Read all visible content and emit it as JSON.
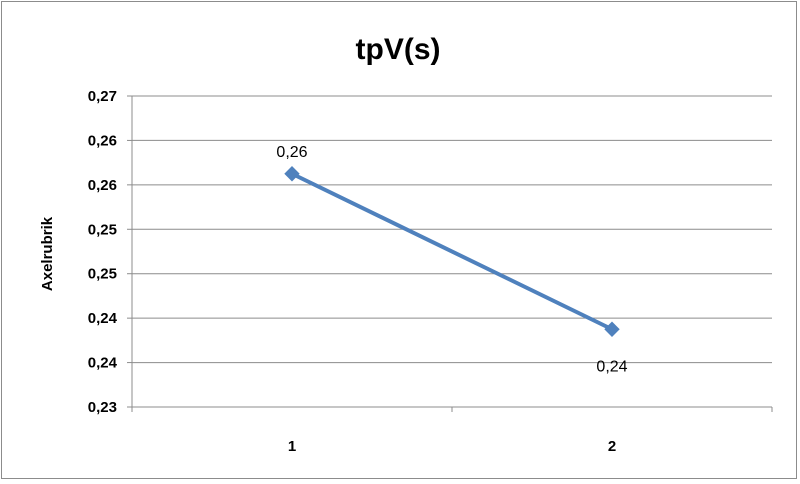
{
  "chart_data": {
    "type": "line",
    "title": "tpV(s)",
    "xlabel": "",
    "ylabel": "Axelrubrik",
    "categories": [
      "1",
      "2"
    ],
    "series": [
      {
        "values": [
          0.26,
          0.24
        ],
        "data_labels": [
          "0,26",
          "0,24"
        ]
      }
    ],
    "ylim": [
      0.23,
      0.27
    ],
    "y_ticks": [
      "0,23",
      "0,24",
      "0,24",
      "0,25",
      "0,25",
      "0,26",
      "0,26",
      "0,27"
    ],
    "grid": true,
    "legend": "none",
    "colors": {
      "series": "#4f81bd",
      "grid": "#8c8c8c"
    },
    "marker": "diamond"
  }
}
